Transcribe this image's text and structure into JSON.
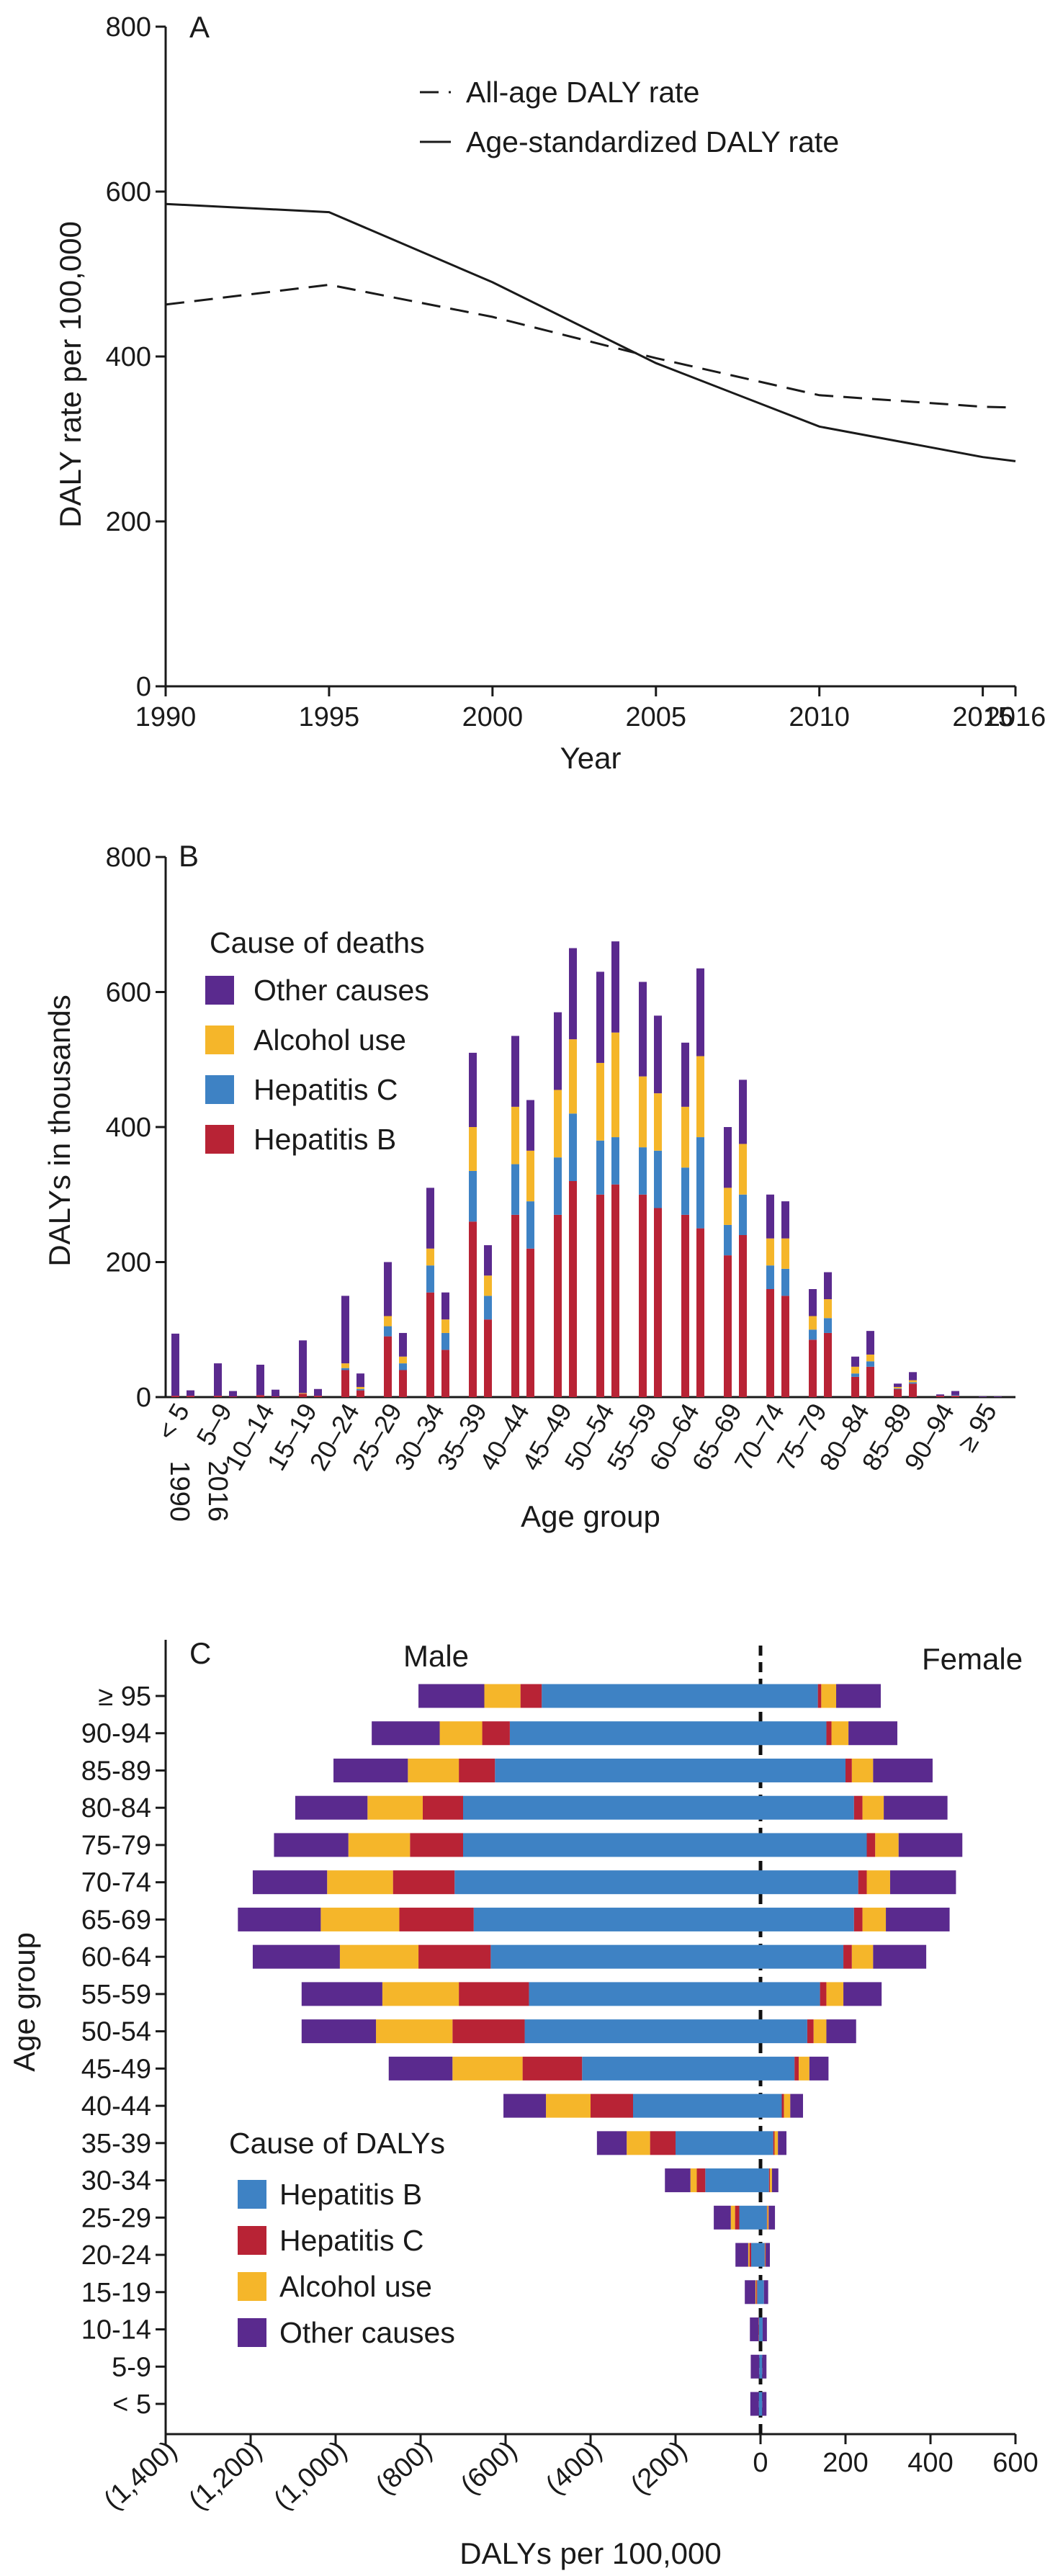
{
  "chart_data": [
    {
      "panel": "A",
      "type": "line",
      "xlabel": "Year",
      "ylabel": "DALY rate per 100,000",
      "xlim": [
        1990,
        2016
      ],
      "ylim": [
        0,
        800
      ],
      "x_ticks": [
        "1990",
        "1995",
        "2000",
        "2005",
        "2010",
        "2015",
        "2016"
      ],
      "y_ticks": [
        "0",
        "200",
        "400",
        "600",
        "800"
      ],
      "x": [
        1990,
        1995,
        2000,
        2005,
        2010,
        2015,
        2016
      ],
      "series": [
        {
          "name": "All-age DALY rate",
          "style": "dashed",
          "values": [
            463,
            487,
            448,
            398,
            353,
            339,
            338
          ]
        },
        {
          "name": "Age-standardized DALY rate",
          "style": "solid",
          "values": [
            585,
            575,
            490,
            392,
            315,
            278,
            273
          ]
        }
      ],
      "legend_position": "top-right"
    },
    {
      "panel": "B",
      "type": "bar",
      "stacked": true,
      "xlabel": "Age group",
      "ylabel": "DALYs in thousands",
      "ylim": [
        0,
        800
      ],
      "y_ticks": [
        "0",
        "200",
        "400",
        "600",
        "800"
      ],
      "categories": [
        "< 5",
        "5–9",
        "10–14",
        "15–19",
        "20–24",
        "25–29",
        "30–34",
        "35–39",
        "40–44",
        "45–49",
        "50–54",
        "55–59",
        "60–64",
        "65–69",
        "70–74",
        "75–79",
        "80–84",
        "85–89",
        "90–94",
        "≥ 95"
      ],
      "bar_years": [
        "1990",
        "2016"
      ],
      "legend_title": "Cause of deaths",
      "legend_position": "top-left",
      "series_order_top_to_bottom": [
        "Other causes",
        "Alcohol use",
        "Hepatitis C",
        "Hepatitis B"
      ],
      "series": [
        {
          "name": "Hepatitis B",
          "color": "#b82335",
          "values_1990": [
            2,
            2,
            3,
            5,
            40,
            90,
            155,
            260,
            270,
            270,
            300,
            300,
            270,
            210,
            160,
            85,
            30,
            12,
            2,
            0
          ],
          "values_2016": [
            2,
            1,
            1,
            2,
            10,
            40,
            70,
            115,
            220,
            320,
            315,
            280,
            250,
            240,
            150,
            95,
            45,
            20,
            2,
            0
          ]
        },
        {
          "name": "Hepatitis C",
          "color": "#3e82c4",
          "values_1990": [
            0,
            0,
            0,
            0,
            3,
            15,
            40,
            75,
            75,
            85,
            80,
            70,
            70,
            45,
            35,
            15,
            5,
            1,
            0,
            0
          ],
          "values_2016": [
            0,
            0,
            0,
            0,
            2,
            10,
            25,
            35,
            70,
            100,
            70,
            85,
            135,
            60,
            40,
            22,
            8,
            2,
            1,
            0
          ]
        },
        {
          "name": "Alcohol use",
          "color": "#f5b62a",
          "values_1990": [
            0,
            0,
            0,
            1,
            7,
            15,
            25,
            65,
            85,
            100,
            115,
            105,
            90,
            55,
            40,
            20,
            10,
            2,
            0,
            0
          ],
          "values_2016": [
            0,
            0,
            0,
            0,
            3,
            10,
            20,
            30,
            75,
            110,
            155,
            85,
            120,
            75,
            45,
            28,
            10,
            3,
            0,
            0
          ]
        },
        {
          "name": "Other causes",
          "color": "#5a2a8e",
          "values_1990": [
            92,
            48,
            45,
            78,
            100,
            80,
            90,
            110,
            105,
            115,
            135,
            140,
            95,
            90,
            65,
            40,
            15,
            5,
            2,
            1
          ],
          "values_2016": [
            8,
            8,
            10,
            10,
            20,
            35,
            40,
            45,
            75,
            135,
            135,
            115,
            130,
            95,
            55,
            40,
            35,
            12,
            6,
            1
          ]
        }
      ]
    },
    {
      "panel": "C",
      "type": "bar",
      "orientation": "horizontal",
      "stacked": true,
      "xlabel": "DALYs per 100,000",
      "ylabel": "Age group",
      "xlim": [
        -1400,
        600
      ],
      "x_ticks": [
        "(1,400)",
        "(1,200)",
        "(1,000)",
        "(800)",
        "(600)",
        "(400)",
        "(200)",
        "0",
        "200",
        "400",
        "600"
      ],
      "side_labels": {
        "left": "Male",
        "right": "Female"
      },
      "legend_title": "Cause of DALYs",
      "legend_position": "bottom-left",
      "categories": [
        "≥ 95",
        "90-94",
        "85-89",
        "80-84",
        "75-79",
        "70-74",
        "65-69",
        "60-64",
        "55-59",
        "50-54",
        "45-49",
        "40-44",
        "35-39",
        "30-34",
        "25-29",
        "20-24",
        "15-19",
        "10-14",
        "5-9",
        "< 5"
      ],
      "series": [
        {
          "name": "Hepatitis B",
          "color": "#3e82c4",
          "male": [
            -515,
            -590,
            -625,
            -700,
            -700,
            -720,
            -675,
            -635,
            -545,
            -555,
            -420,
            -300,
            -200,
            -130,
            -50,
            -22,
            -8,
            -4,
            -3,
            -4
          ],
          "female": [
            135,
            155,
            200,
            220,
            250,
            230,
            220,
            195,
            140,
            110,
            80,
            50,
            30,
            20,
            15,
            10,
            8,
            5,
            4,
            4
          ]
        },
        {
          "name": "Hepatitis C",
          "color": "#b82335",
          "male": [
            -50,
            -65,
            -85,
            -95,
            -125,
            -145,
            -175,
            -170,
            -165,
            -170,
            -140,
            -100,
            -60,
            -20,
            -10,
            -4,
            -2,
            -1,
            0,
            0
          ],
          "female": [
            8,
            12,
            15,
            20,
            20,
            20,
            20,
            20,
            15,
            15,
            10,
            5,
            3,
            2,
            1,
            1,
            0,
            0,
            0,
            0
          ]
        },
        {
          "name": "Alcohol use",
          "color": "#f5b62a",
          "male": [
            -85,
            -100,
            -120,
            -130,
            -145,
            -155,
            -185,
            -185,
            -180,
            -180,
            -165,
            -105,
            -55,
            -15,
            -10,
            -3,
            -2,
            0,
            0,
            0
          ],
          "female": [
            35,
            40,
            50,
            50,
            55,
            55,
            55,
            50,
            40,
            30,
            25,
            15,
            8,
            5,
            3,
            1,
            0,
            0,
            0,
            0
          ]
        },
        {
          "name": "Other causes",
          "color": "#5a2a8e",
          "male": [
            -155,
            -160,
            -175,
            -170,
            -175,
            -175,
            -195,
            -205,
            -190,
            -175,
            -150,
            -100,
            -70,
            -60,
            -40,
            -30,
            -25,
            -20,
            -20,
            -20
          ],
          "female": [
            105,
            115,
            140,
            150,
            150,
            155,
            150,
            125,
            90,
            70,
            45,
            30,
            20,
            15,
            15,
            10,
            10,
            10,
            10,
            10
          ]
        }
      ]
    }
  ]
}
